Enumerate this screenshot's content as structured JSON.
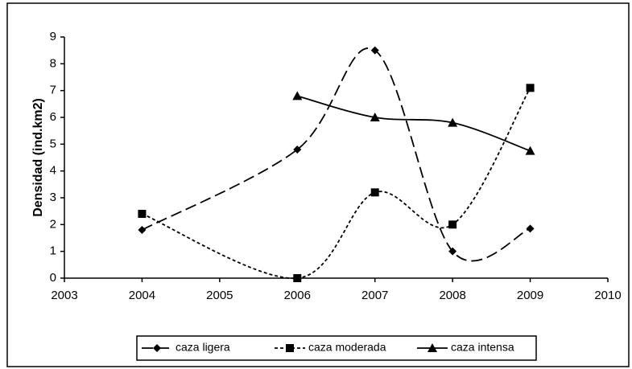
{
  "chart_data": {
    "type": "line",
    "y_label": "Densidad (ind.km2)",
    "x": [
      2004,
      2006,
      2007,
      2008,
      2009
    ],
    "series": [
      {
        "name": "caza ligera",
        "color": "#000000",
        "marker": "diamond",
        "dash": "long",
        "values": [
          1.8,
          4.8,
          8.5,
          1.0,
          1.85
        ]
      },
      {
        "name": "caza moderada",
        "color": "#000000",
        "marker": "square",
        "dash": "short",
        "values": [
          2.4,
          0,
          3.2,
          2.0,
          7.1
        ]
      },
      {
        "name": "caza intensa",
        "color": "#000000",
        "marker": "triangle",
        "dash": "solid",
        "values": [
          null,
          6.8,
          6.0,
          5.8,
          4.75
        ]
      }
    ],
    "xlim": [
      2003,
      2010
    ],
    "xticks": [
      2003,
      2004,
      2005,
      2006,
      2007,
      2008,
      2009,
      2010
    ],
    "ylim": [
      0,
      9
    ],
    "yticks": [
      0,
      1,
      2,
      3,
      4,
      5,
      6,
      7,
      8,
      9
    ],
    "legend": "bottom",
    "grid": false
  }
}
